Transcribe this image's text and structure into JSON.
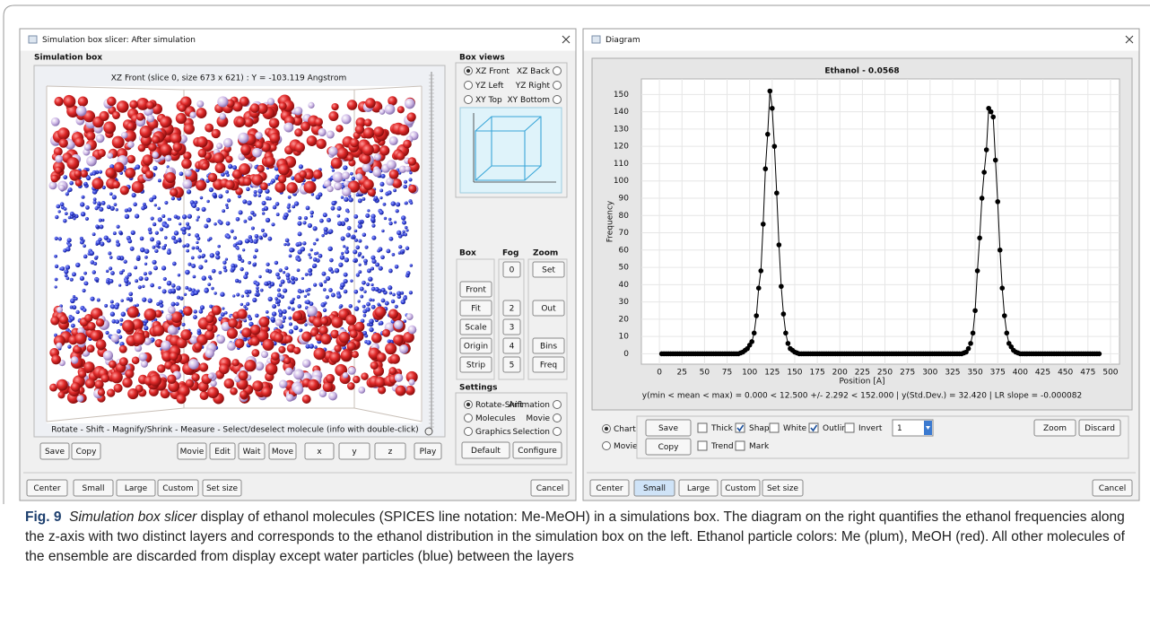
{
  "left_window": {
    "title": "Simulation box slicer: After simulation",
    "section_title": "Simulation box",
    "view_header": "XZ Front (slice 0, size 673 x 621)  :  Y = -103.119 Angstrom",
    "view_footer": "Rotate - Shift - Magnify/Shrink - Measure - Select/deselect molecule (info with double-click)",
    "view_buttons": [
      "Save",
      "Copy",
      "Movie",
      "Edit",
      "Wait",
      "Move",
      "x",
      "y",
      "z",
      "Play"
    ],
    "box_views": {
      "title": "Box views",
      "options": [
        "XZ Front",
        "XZ Back",
        "YZ Left",
        "YZ Right",
        "XY Top",
        "XY Bottom"
      ],
      "selected": 0
    },
    "box_label": "Box",
    "fog_label": "Fog",
    "zoom_label": "Zoom",
    "box_buttons": [
      "Front",
      "Fit",
      "Scale",
      "Origin",
      "Strip"
    ],
    "fog_buttons": [
      "0",
      "2",
      "3",
      "4",
      "5"
    ],
    "zoom_buttons": [
      "Set",
      "Out",
      "Bins",
      "Freq"
    ],
    "settings": {
      "title": "Settings",
      "options": [
        "Rotate-Shift",
        "Animation",
        "Molecules",
        "Movie",
        "Graphics",
        "Selection"
      ],
      "selected": 0
    },
    "settings_buttons": [
      "Default",
      "Configure"
    ],
    "bottom_buttons": [
      "Center",
      "Small",
      "Large",
      "Custom",
      "Set size"
    ],
    "cancel": "Cancel"
  },
  "right_window": {
    "title": "Diagram",
    "chart": {
      "type": "line",
      "title": "Ethanol - 0.0568",
      "x_label": "Position [A]",
      "y_label": "Frequency",
      "x": [
        2.5,
        5,
        7.5,
        10,
        12.5,
        15,
        17.5,
        20,
        22.5,
        25,
        27.5,
        30,
        32.5,
        35,
        37.5,
        40,
        42.5,
        45,
        47.5,
        50,
        52.5,
        55,
        57.5,
        60,
        62.5,
        65,
        67.5,
        70,
        72.5,
        75,
        77.5,
        80,
        82.5,
        85,
        87.5,
        90,
        92.5,
        95,
        97.5,
        100,
        102.5,
        105,
        107.5,
        110,
        112.5,
        115,
        117.5,
        120,
        122.5,
        125,
        127.5,
        130,
        132.5,
        135,
        137.5,
        140,
        142.5,
        145,
        147.5,
        150,
        152.5,
        155,
        157.5,
        160,
        162.5,
        165,
        167.5,
        170,
        172.5,
        175,
        177.5,
        180,
        182.5,
        185,
        187.5,
        190,
        192.5,
        195,
        197.5,
        200,
        202.5,
        205,
        207.5,
        210,
        212.5,
        215,
        217.5,
        220,
        222.5,
        225,
        227.5,
        230,
        232.5,
        235,
        237.5,
        240,
        242.5,
        245,
        247.5,
        250,
        252.5,
        255,
        257.5,
        260,
        262.5,
        265,
        267.5,
        270,
        272.5,
        275,
        277.5,
        280,
        282.5,
        285,
        287.5,
        290,
        292.5,
        295,
        297.5,
        300,
        302.5,
        305,
        307.5,
        310,
        312.5,
        315,
        317.5,
        320,
        322.5,
        325,
        327.5,
        330,
        332.5,
        335,
        337.5,
        340,
        342.5,
        345,
        347.5,
        350,
        352.5,
        355,
        357.5,
        360,
        362.5,
        365,
        367.5,
        370,
        372.5,
        375,
        377.5,
        380,
        382.5,
        385,
        387.5,
        390,
        392.5,
        395,
        397.5,
        400,
        402.5,
        405,
        407.5,
        410,
        412.5,
        415,
        417.5,
        420,
        422.5,
        425,
        427.5,
        430,
        432.5,
        435,
        437.5,
        440,
        442.5,
        445,
        447.5,
        450,
        452.5,
        455,
        457.5,
        460,
        462.5,
        465,
        467.5,
        470,
        472.5,
        475,
        477.5,
        480,
        482.5,
        485,
        487.5
      ],
      "series": [
        {
          "color": "#000000",
          "values": [
            0,
            0,
            0,
            0,
            0,
            0,
            0,
            0,
            0,
            0,
            0,
            0,
            0,
            0,
            0,
            0,
            0,
            0,
            0,
            0,
            0,
            0,
            0,
            0,
            0,
            0,
            0,
            0,
            0,
            0,
            0,
            0,
            0,
            0,
            0,
            0.5,
            1,
            2,
            3,
            5,
            7,
            12,
            22,
            38,
            48,
            75,
            107,
            127,
            152,
            142,
            120,
            93,
            63,
            39,
            23,
            12,
            6,
            3,
            2,
            1,
            0.5,
            0,
            0,
            0,
            0,
            0,
            0,
            0,
            0,
            0,
            0,
            0,
            0,
            0,
            0,
            0,
            0,
            0,
            0,
            0,
            0,
            0,
            0,
            0,
            0,
            0,
            0,
            0,
            0,
            0,
            0,
            0,
            0,
            0,
            0,
            0,
            0,
            0,
            0,
            0,
            0,
            0,
            0,
            0,
            0,
            0,
            0,
            0,
            0,
            0,
            0,
            0,
            0,
            0,
            0,
            0,
            0,
            0,
            0,
            0,
            0,
            0,
            0,
            0,
            0,
            0,
            0,
            0,
            0,
            0,
            0,
            0,
            0,
            0,
            0.5,
            1,
            3,
            6,
            12,
            25,
            48,
            67,
            90,
            105,
            118,
            142,
            140,
            137,
            112,
            88,
            60,
            38,
            22,
            12,
            6,
            4,
            2,
            1,
            0.5,
            0,
            0,
            0,
            0,
            0,
            0,
            0,
            0,
            0,
            0,
            0,
            0,
            0,
            0,
            0,
            0,
            0,
            0,
            0,
            0,
            0,
            0,
            0,
            0,
            0,
            0,
            0,
            0,
            0,
            0,
            0,
            0,
            0,
            0,
            0,
            0
          ]
        }
      ],
      "xlim": [
        -20,
        510
      ],
      "ylim": [
        -6,
        159
      ],
      "xticks": [
        0,
        25,
        50,
        75,
        100,
        125,
        150,
        175,
        200,
        225,
        250,
        275,
        300,
        325,
        350,
        375,
        400,
        425,
        450,
        475,
        500
      ],
      "yticks": [
        0,
        10,
        20,
        30,
        40,
        50,
        60,
        70,
        80,
        90,
        100,
        110,
        120,
        130,
        140,
        150
      ],
      "grid": true
    },
    "statistics": "y(min < mean < max) = 0.000 < 12.500 +/- 2.292 < 152.000    |    y(Std.Dev.) = 32.420    |    LR slope = -0.000082",
    "modes": {
      "options": [
        "Chart",
        "Movie"
      ],
      "selected": 0
    },
    "buttons": [
      "Save",
      "Copy"
    ],
    "checkboxes": [
      {
        "label": "Thick",
        "checked": false
      },
      {
        "label": "Shapes",
        "checked": true
      },
      {
        "label": "White",
        "checked": false
      },
      {
        "label": "Outline",
        "checked": true
      },
      {
        "label": "Invert",
        "checked": false
      },
      {
        "label": "Trend",
        "checked": false
      },
      {
        "label": "Mark",
        "checked": false
      }
    ],
    "dropdown": "1",
    "action_buttons": [
      "Zoom",
      "Discard"
    ],
    "bottom_buttons": [
      "Center",
      "Small",
      "Large",
      "Custom",
      "Set size"
    ],
    "cancel": "Cancel"
  },
  "caption": {
    "label": "Fig. 9",
    "emphasis": "Simulation box slicer",
    "text": " display of ethanol molecules (SPICES line notation: Me-MeOH) in a simulations box. The diagram on the right quantifies the ethanol frequencies along the z-axis with two distinct layers and corresponds to the ethanol distribution in the simulation box on the left. Ethanol particle colors: Me (plum), MeOH (red). All other molecules of the ensemble are discarded from display except water particles (blue) between the layers"
  }
}
